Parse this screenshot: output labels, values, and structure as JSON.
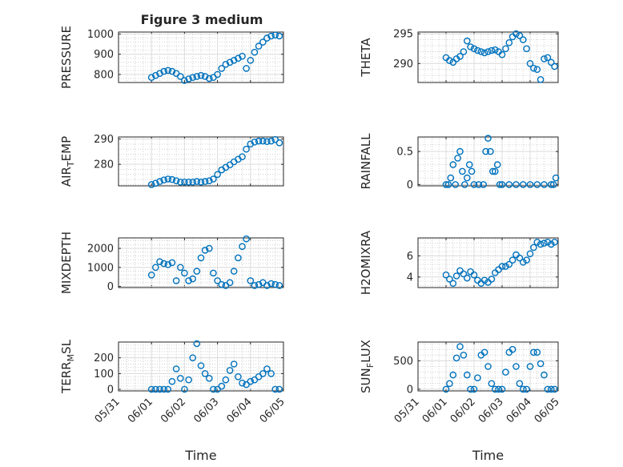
{
  "figure_title": "Figure 3 medium",
  "colors": {
    "marker": "#0072bd",
    "axis": "#262626",
    "grid": "#dcdcdc"
  },
  "chart_data": [
    {
      "type": "scatter",
      "ylabel": "PRESSURE",
      "ylim": [
        760,
        1010
      ],
      "yticks": [
        800,
        900,
        1000
      ],
      "show_x_ticklabels": false,
      "x": [
        "06/01 00:00",
        "06/01 03:00",
        "06/01 06:00",
        "06/01 09:00",
        "06/01 12:00",
        "06/01 15:00",
        "06/01 18:00",
        "06/01 21:00",
        "06/02 00:00",
        "06/02 03:00",
        "06/02 06:00",
        "06/02 09:00",
        "06/02 12:00",
        "06/02 15:00",
        "06/02 18:00",
        "06/02 21:00",
        "06/03 00:00",
        "06/03 03:00",
        "06/03 06:00",
        "06/03 09:00",
        "06/03 12:00",
        "06/03 15:00",
        "06/03 18:00",
        "06/03 21:00",
        "06/04 00:00",
        "06/04 03:00",
        "06/04 06:00",
        "06/04 09:00",
        "06/04 12:00",
        "06/04 15:00",
        "06/04 18:00",
        "06/04 21:00"
      ],
      "y": [
        785,
        795,
        805,
        815,
        820,
        815,
        805,
        790,
        770,
        778,
        785,
        790,
        795,
        790,
        780,
        785,
        800,
        830,
        850,
        860,
        870,
        880,
        890,
        830,
        870,
        910,
        940,
        960,
        980,
        990,
        995,
        990
      ]
    },
    {
      "type": "scatter",
      "ylabel": "THETA",
      "ylim": [
        286.8,
        295.3
      ],
      "yticks": [
        290,
        295
      ],
      "show_x_ticklabels": false,
      "x": [
        "06/01 00:00",
        "06/01 03:00",
        "06/01 06:00",
        "06/01 09:00",
        "06/01 12:00",
        "06/01 15:00",
        "06/01 18:00",
        "06/01 21:00",
        "06/02 00:00",
        "06/02 03:00",
        "06/02 06:00",
        "06/02 09:00",
        "06/02 12:00",
        "06/02 15:00",
        "06/02 18:00",
        "06/02 21:00",
        "06/03 00:00",
        "06/03 03:00",
        "06/03 06:00",
        "06/03 09:00",
        "06/03 12:00",
        "06/03 15:00",
        "06/03 18:00",
        "06/03 21:00",
        "06/04 00:00",
        "06/04 03:00",
        "06/04 06:00",
        "06/04 09:00",
        "06/04 12:00",
        "06/04 15:00",
        "06/04 18:00",
        "06/04 21:00"
      ],
      "y": [
        291,
        290.5,
        290.2,
        290.8,
        291.2,
        292,
        293.8,
        292.8,
        292.5,
        292.2,
        292,
        291.8,
        292,
        292.2,
        292.3,
        292,
        291.5,
        292.5,
        293.5,
        294.5,
        295,
        294.7,
        294,
        292.5,
        290,
        289.2,
        289,
        287.3,
        290.8,
        291,
        290.2,
        289.5
      ]
    },
    {
      "type": "scatter",
      "ylabel": "AIR_TEMP",
      "ylabel_main": "AIR",
      "ylabel_sub": "T",
      "ylabel_rest": "EMP",
      "ylim": [
        271.5,
        290.8
      ],
      "yticks": [
        280,
        290
      ],
      "show_x_ticklabels": false,
      "x": [
        "06/01 00:00",
        "06/01 03:00",
        "06/01 06:00",
        "06/01 09:00",
        "06/01 12:00",
        "06/01 15:00",
        "06/01 18:00",
        "06/01 21:00",
        "06/02 00:00",
        "06/02 03:00",
        "06/02 06:00",
        "06/02 09:00",
        "06/02 12:00",
        "06/02 15:00",
        "06/02 18:00",
        "06/02 21:00",
        "06/03 00:00",
        "06/03 03:00",
        "06/03 06:00",
        "06/03 09:00",
        "06/03 12:00",
        "06/03 15:00",
        "06/03 18:00",
        "06/03 21:00",
        "06/04 00:00",
        "06/04 03:00",
        "06/04 06:00",
        "06/04 09:00",
        "06/04 12:00",
        "06/04 15:00",
        "06/04 18:00",
        "06/04 21:00"
      ],
      "y": [
        272,
        272.5,
        273.2,
        273.8,
        274.2,
        274,
        273.5,
        273,
        273,
        273,
        273,
        273.2,
        273,
        273.2,
        273.5,
        274.2,
        276,
        277.8,
        278.8,
        279.8,
        281,
        282,
        283,
        286,
        288,
        288.8,
        289.2,
        289.2,
        289,
        289.2,
        289.8,
        288.5
      ]
    },
    {
      "type": "scatter",
      "ylabel": "RAINFALL",
      "ylim": [
        -0.02,
        0.72
      ],
      "yticks": [
        0,
        0.5
      ],
      "show_x_ticklabels": false,
      "x": [
        "06/01 00:00",
        "06/01 02:00",
        "06/01 04:00",
        "06/01 06:00",
        "06/01 08:00",
        "06/01 10:00",
        "06/01 12:00",
        "06/01 14:00",
        "06/01 16:00",
        "06/01 18:00",
        "06/01 20:00",
        "06/01 22:00",
        "06/02 00:00",
        "06/02 04:00",
        "06/02 08:00",
        "06/02 10:00",
        "06/02 12:00",
        "06/02 14:00",
        "06/02 16:00",
        "06/02 18:00",
        "06/02 20:00",
        "06/02 22:00",
        "06/03 00:00",
        "06/03 06:00",
        "06/03 12:00",
        "06/03 18:00",
        "06/04 00:00",
        "06/04 06:00",
        "06/04 12:00",
        "06/04 18:00",
        "06/04 20:00",
        "06/04 22:00"
      ],
      "y": [
        0,
        0,
        0.1,
        0.3,
        0,
        0.4,
        0.5,
        0.2,
        0,
        0.1,
        0.3,
        0.2,
        0,
        0,
        0,
        0.5,
        0.7,
        0.5,
        0.2,
        0.2,
        0.3,
        0,
        0,
        0,
        0,
        0,
        0,
        0,
        0,
        0,
        0,
        0.1
      ]
    },
    {
      "type": "scatter",
      "ylabel": "MIXDEPTH",
      "ylim": [
        -60,
        2550
      ],
      "yticks": [
        0,
        1000,
        2000
      ],
      "show_x_ticklabels": false,
      "x": [
        "06/01 00:00",
        "06/01 03:00",
        "06/01 06:00",
        "06/01 09:00",
        "06/01 12:00",
        "06/01 15:00",
        "06/01 18:00",
        "06/01 21:00",
        "06/02 00:00",
        "06/02 03:00",
        "06/02 06:00",
        "06/02 09:00",
        "06/02 12:00",
        "06/02 15:00",
        "06/02 18:00",
        "06/02 21:00",
        "06/03 00:00",
        "06/03 03:00",
        "06/03 06:00",
        "06/03 09:00",
        "06/03 12:00",
        "06/03 15:00",
        "06/03 18:00",
        "06/03 21:00",
        "06/04 00:00",
        "06/04 03:00",
        "06/04 06:00",
        "06/04 09:00",
        "06/04 12:00",
        "06/04 15:00",
        "06/04 18:00",
        "06/04 21:00"
      ],
      "y": [
        600,
        1000,
        1300,
        1200,
        1150,
        1250,
        300,
        1000,
        700,
        300,
        400,
        800,
        1500,
        1900,
        2000,
        700,
        300,
        100,
        50,
        200,
        800,
        1500,
        2100,
        2500,
        300,
        50,
        100,
        200,
        50,
        150,
        100,
        50
      ]
    },
    {
      "type": "scatter",
      "ylabel": "H2OMIXRA",
      "ylim": [
        3.0,
        7.7
      ],
      "yticks": [
        4,
        6
      ],
      "show_x_ticklabels": false,
      "x": [
        "06/01 00:00",
        "06/01 03:00",
        "06/01 06:00",
        "06/01 09:00",
        "06/01 12:00",
        "06/01 15:00",
        "06/01 18:00",
        "06/01 21:00",
        "06/02 00:00",
        "06/02 03:00",
        "06/02 06:00",
        "06/02 09:00",
        "06/02 12:00",
        "06/02 15:00",
        "06/02 18:00",
        "06/02 21:00",
        "06/03 00:00",
        "06/03 03:00",
        "06/03 06:00",
        "06/03 09:00",
        "06/03 12:00",
        "06/03 15:00",
        "06/03 18:00",
        "06/03 21:00",
        "06/04 00:00",
        "06/04 03:00",
        "06/04 06:00",
        "06/04 09:00",
        "06/04 12:00",
        "06/04 15:00",
        "06/04 18:00",
        "06/04 21:00"
      ],
      "y": [
        4.2,
        3.8,
        3.4,
        4.1,
        4.6,
        4.3,
        3.9,
        4.5,
        4.2,
        3.7,
        3.4,
        3.7,
        3.5,
        3.8,
        4.4,
        4.7,
        5,
        5,
        5.2,
        5.6,
        6.1,
        5.8,
        5.4,
        5.6,
        6.2,
        6.8,
        7.3,
        7.1,
        7.2,
        7.3,
        7.1,
        7.3
      ]
    },
    {
      "type": "scatter",
      "ylabel": "TERR_MSL",
      "ylabel_main": "TERR",
      "ylabel_sub": "M",
      "ylabel_rest": "SL",
      "ylim": [
        -10,
        300
      ],
      "yticks": [
        0,
        100,
        200
      ],
      "show_x_ticklabels": true,
      "xlabel": "Time",
      "x": [
        "06/01 00:00",
        "06/01 03:00",
        "06/01 06:00",
        "06/01 09:00",
        "06/01 12:00",
        "06/01 15:00",
        "06/01 18:00",
        "06/01 21:00",
        "06/02 00:00",
        "06/02 03:00",
        "06/02 06:00",
        "06/02 09:00",
        "06/02 12:00",
        "06/02 15:00",
        "06/02 18:00",
        "06/02 21:00",
        "06/03 00:00",
        "06/03 03:00",
        "06/03 06:00",
        "06/03 09:00",
        "06/03 12:00",
        "06/03 15:00",
        "06/03 18:00",
        "06/03 21:00",
        "06/04 00:00",
        "06/04 03:00",
        "06/04 06:00",
        "06/04 09:00",
        "06/04 12:00",
        "06/04 15:00",
        "06/04 18:00",
        "06/04 21:00"
      ],
      "y": [
        0,
        0,
        0,
        0,
        0,
        50,
        130,
        70,
        0,
        60,
        200,
        290,
        150,
        100,
        70,
        0,
        0,
        20,
        60,
        120,
        160,
        80,
        40,
        30,
        50,
        60,
        80,
        100,
        130,
        100,
        0,
        0
      ]
    },
    {
      "type": "scatter",
      "ylabel": "SUN_FLUX",
      "ylabel_main": "SUN",
      "ylabel_sub": "F",
      "ylabel_rest": "LUX",
      "ylim": [
        -30,
        830
      ],
      "yticks": [
        0,
        500
      ],
      "show_x_ticklabels": true,
      "xlabel": "Time",
      "x": [
        "06/01 00:00",
        "06/01 03:00",
        "06/01 06:00",
        "06/01 09:00",
        "06/01 12:00",
        "06/01 15:00",
        "06/01 18:00",
        "06/01 21:00",
        "06/02 00:00",
        "06/02 03:00",
        "06/02 06:00",
        "06/02 09:00",
        "06/02 12:00",
        "06/02 15:00",
        "06/02 18:00",
        "06/02 21:00",
        "06/03 00:00",
        "06/03 03:00",
        "06/03 06:00",
        "06/03 09:00",
        "06/03 12:00",
        "06/03 15:00",
        "06/03 18:00",
        "06/03 21:00",
        "06/04 00:00",
        "06/04 03:00",
        "06/04 06:00",
        "06/04 09:00",
        "06/04 12:00",
        "06/04 15:00",
        "06/04 18:00",
        "06/04 21:00"
      ],
      "y": [
        0,
        100,
        250,
        550,
        750,
        600,
        250,
        0,
        0,
        200,
        600,
        650,
        400,
        100,
        0,
        0,
        0,
        300,
        650,
        700,
        400,
        100,
        0,
        0,
        400,
        650,
        650,
        450,
        250,
        0,
        0,
        0
      ]
    }
  ],
  "x_axis": {
    "ticks": [
      "05/31",
      "06/01",
      "06/02",
      "06/03",
      "06/04",
      "06/05"
    ]
  }
}
